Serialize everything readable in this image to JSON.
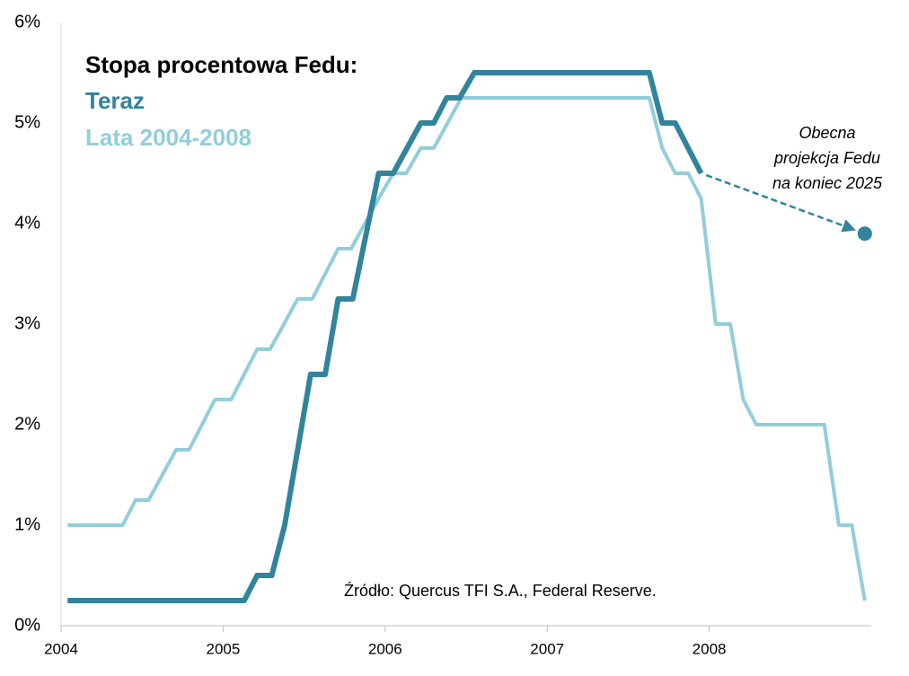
{
  "chart_data": {
    "type": "line",
    "legend_title": "Stopa procentowa Fedu:",
    "source": "Źródło: Quercus TFI S.A., Federal Reserve.",
    "annotation": [
      "Obecna",
      "projekcja Fedu",
      "na koniec 2025"
    ],
    "xlim": [
      2004,
      2009
    ],
    "xticks": [
      2004,
      2005,
      2006,
      2007,
      2008
    ],
    "ylim": [
      0,
      6
    ],
    "yticks": [
      {
        "value": 0,
        "label": "0%"
      },
      {
        "value": 1,
        "label": "1%"
      },
      {
        "value": 2,
        "label": "2%"
      },
      {
        "value": 3,
        "label": "3%"
      },
      {
        "value": 4,
        "label": "4%"
      },
      {
        "value": 5,
        "label": "5%"
      },
      {
        "value": 6,
        "label": "6%"
      }
    ],
    "series": [
      {
        "name": "Teraz",
        "color": "#31849b",
        "x": [
          2004.04,
          2005.13,
          2005.21,
          2005.3,
          2005.38,
          2005.54,
          2005.63,
          2005.71,
          2005.8,
          2005.96,
          2006.05,
          2006.22,
          2006.3,
          2006.38,
          2006.46,
          2006.55,
          2007.63,
          2007.71,
          2007.79,
          2007.95
        ],
        "values": [
          0.25,
          0.25,
          0.5,
          0.5,
          1.0,
          2.5,
          2.5,
          3.25,
          3.25,
          4.5,
          4.5,
          5.0,
          5.0,
          5.25,
          5.25,
          5.5,
          5.5,
          5.0,
          5.0,
          4.5
        ]
      },
      {
        "name": "Lata 2004-2008",
        "color": "#92cddc",
        "x": [
          2004.04,
          2004.38,
          2004.46,
          2004.54,
          2004.71,
          2004.79,
          2004.95,
          2005.05,
          2005.21,
          2005.29,
          2005.46,
          2005.55,
          2005.71,
          2005.79,
          2005.96,
          2006.05,
          2006.13,
          2006.22,
          2006.3,
          2006.47,
          2007.63,
          2007.71,
          2007.79,
          2007.87,
          2007.95,
          2008.04,
          2008.13,
          2008.21,
          2008.29,
          2008.71,
          2008.8,
          2008.88,
          2008.96
        ],
        "values": [
          1.0,
          1.0,
          1.25,
          1.25,
          1.75,
          1.75,
          2.25,
          2.25,
          2.75,
          2.75,
          3.25,
          3.25,
          3.75,
          3.75,
          4.25,
          4.5,
          4.5,
          4.75,
          4.75,
          5.25,
          5.25,
          4.75,
          4.5,
          4.5,
          4.25,
          3.0,
          3.0,
          2.25,
          2.0,
          2.0,
          1.0,
          1.0,
          0.25
        ]
      }
    ],
    "projection": {
      "x": 2008.96,
      "value": 3.9,
      "color": "#31849b"
    }
  }
}
